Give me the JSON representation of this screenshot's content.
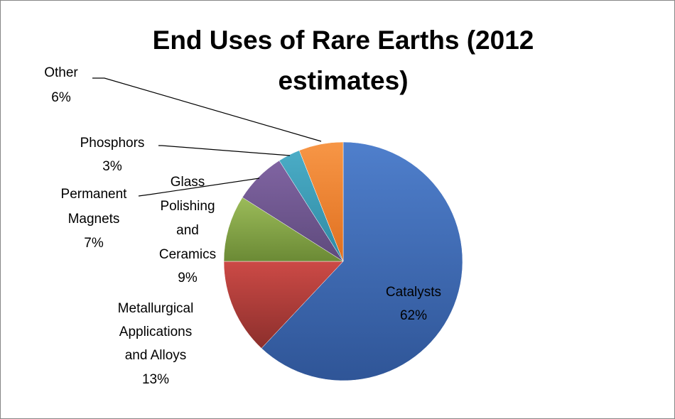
{
  "chart_data": {
    "type": "pie",
    "title": "End Uses of Rare Earths (2012 estimates)",
    "title_lines": [
      "End Uses of Rare Earths (2012",
      "estimates)"
    ],
    "slices": [
      {
        "name": "Catalysts",
        "value": 62,
        "label": "62%",
        "color": "#4472C4"
      },
      {
        "name": "Metallurgical Applications and Alloys",
        "value": 13,
        "label": "13%",
        "color": "#C0504D"
      },
      {
        "name": "Glass Polishing and Ceramics",
        "value": 9,
        "label": "9%",
        "color": "#9BBB59"
      },
      {
        "name": "Permanent Magnets",
        "value": 7,
        "label": "7%",
        "color": "#8064A2"
      },
      {
        "name": "Phosphors",
        "value": 3,
        "label": "3%",
        "color": "#4BACC6"
      },
      {
        "name": "Other",
        "value": 6,
        "label": "6%",
        "color": "#F79646"
      }
    ],
    "legend": "none"
  }
}
